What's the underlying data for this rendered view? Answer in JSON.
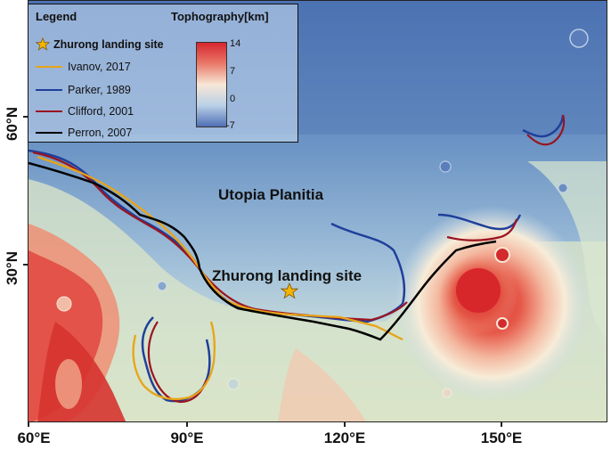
{
  "axes": {
    "y_ticks": [
      {
        "label": "60°N"
      },
      {
        "label": "30°N"
      }
    ],
    "x_ticks": [
      {
        "label": "60°E"
      },
      {
        "label": "90°E"
      },
      {
        "label": "120°E"
      },
      {
        "label": "150°E"
      }
    ]
  },
  "legend": {
    "title": "Legend",
    "items": [
      {
        "label": "Zhurong landing site",
        "kind": "star",
        "color": "#f5b400"
      },
      {
        "label": "Ivanov, 2017",
        "kind": "line",
        "color": "#e8a417"
      },
      {
        "label": "Parker, 1989",
        "kind": "line",
        "color": "#1f3f9a"
      },
      {
        "label": "Clifford, 2001",
        "kind": "line",
        "color": "#9a1420"
      },
      {
        "label": "Perron, 2007",
        "kind": "line",
        "color": "#000000"
      }
    ]
  },
  "colorbar": {
    "title": "Tophography",
    "unit": "[km]",
    "ticks": [
      "14",
      "7",
      "0",
      "-7"
    ],
    "colors": [
      "#d6262e",
      "#ea7a6a",
      "#f7e7d6",
      "#b9d0e6",
      "#4f6fb6"
    ]
  },
  "labels": {
    "region": "Utopia Planitia",
    "site": "Zhurong landing site"
  }
}
